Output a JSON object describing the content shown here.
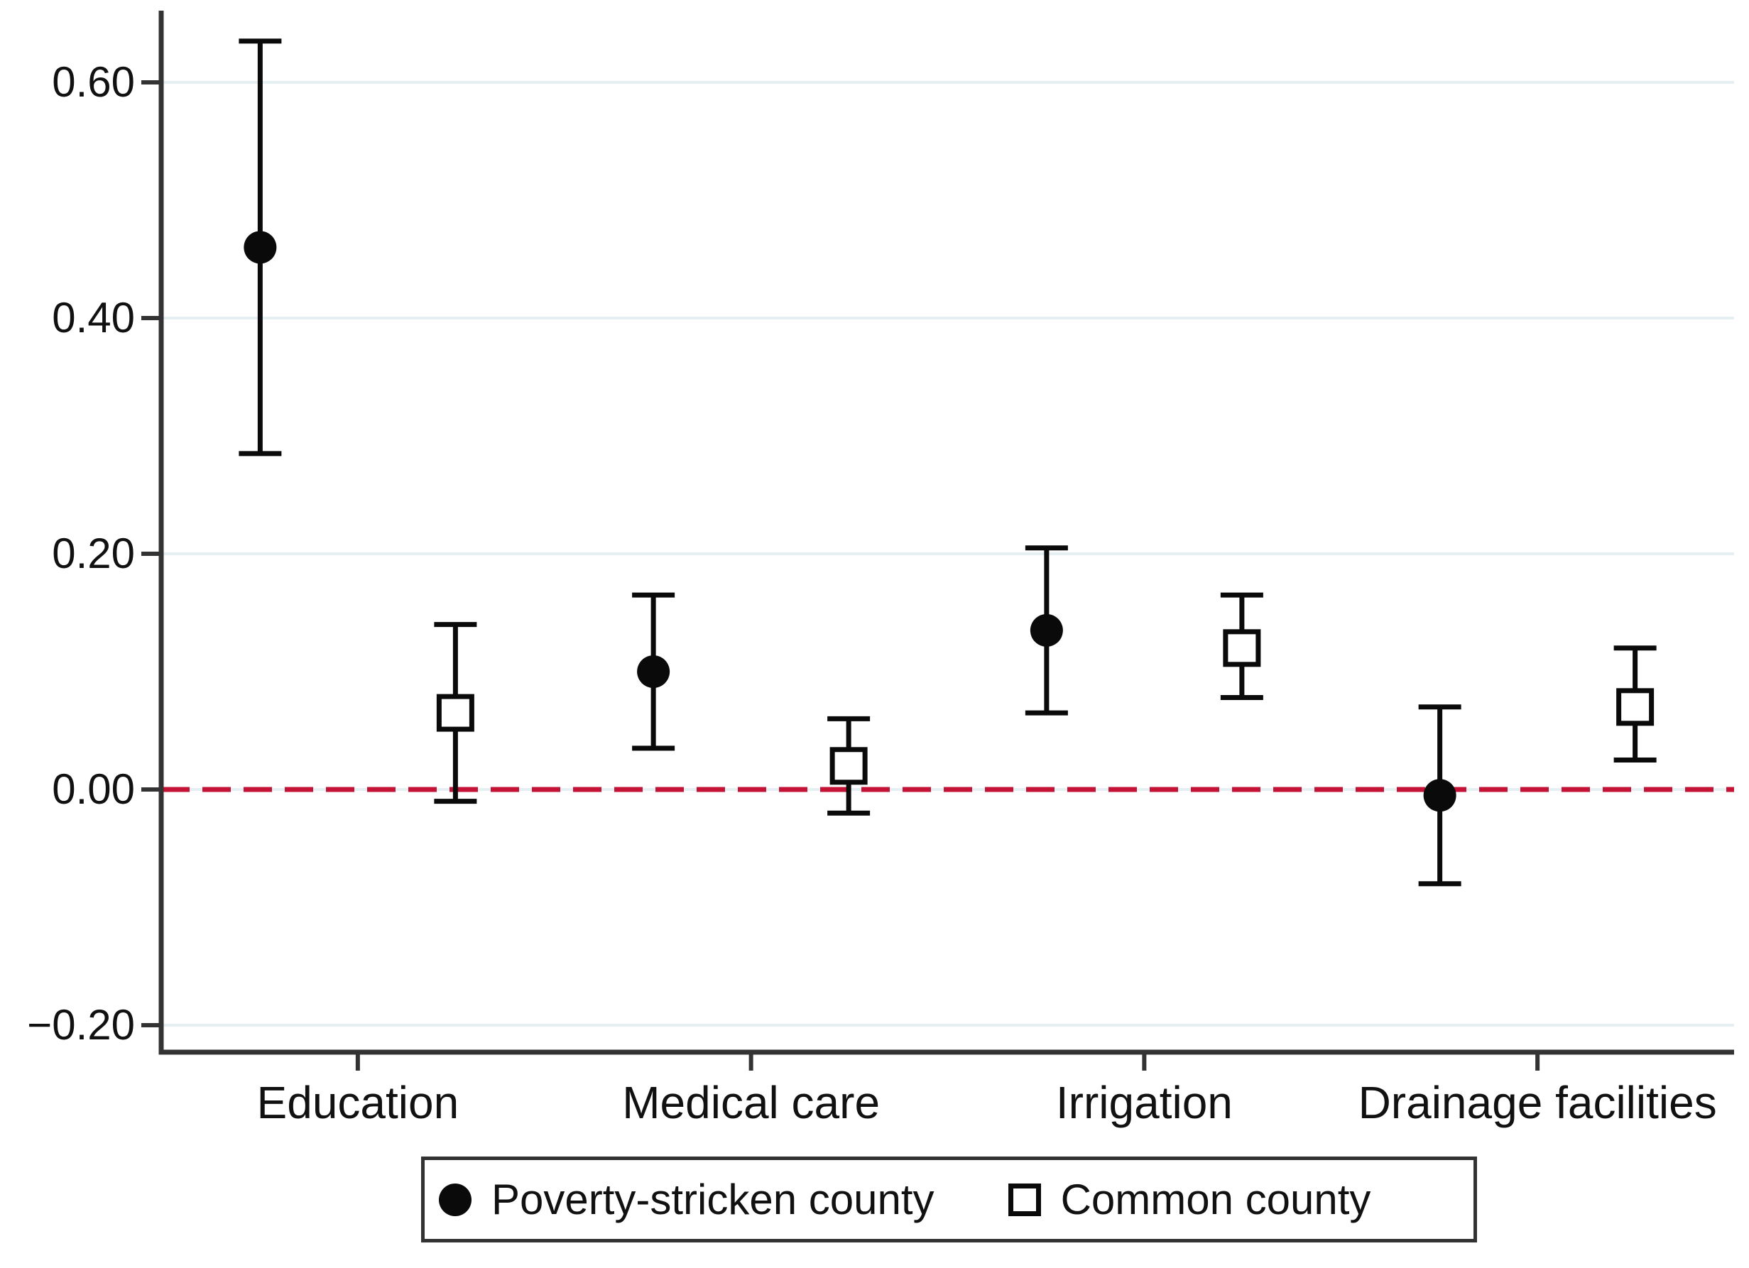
{
  "figure": {
    "background": "#ffffff"
  },
  "chart_data": {
    "type": "scatter",
    "subtype": "coefficient-plot-with-confidence-intervals",
    "title": "",
    "xlabel": "",
    "ylabel": "",
    "categories": [
      "Education",
      "Medical care",
      "Irrigation",
      "Drainage facilities"
    ],
    "series": [
      {
        "name": "Poverty-stricken county",
        "marker": "filled-circle",
        "color": "#0a0a0a",
        "values": [
          0.46,
          0.1,
          0.135,
          -0.005
        ],
        "ci_low": [
          0.285,
          0.035,
          0.065,
          -0.08
        ],
        "ci_high": [
          0.635,
          0.165,
          0.205,
          0.07
        ]
      },
      {
        "name": "Common county",
        "marker": "open-square",
        "color": "#0a0a0a",
        "values": [
          0.065,
          0.02,
          0.12,
          0.07
        ],
        "ci_low": [
          -0.01,
          -0.02,
          0.078,
          0.025
        ],
        "ci_high": [
          0.14,
          0.06,
          0.165,
          0.12
        ]
      }
    ],
    "ylim": [
      -0.223,
      0.661
    ],
    "yticks": [
      0.6,
      0.4,
      0.2,
      0.0,
      -0.2
    ],
    "ytick_labels": [
      "0.60",
      "0.40",
      "0.20",
      "0.00",
      "−0.20"
    ],
    "zero_line": {
      "value": 0.0,
      "color": "#c51237",
      "style": "dashed"
    },
    "grid": true,
    "legend_position": "bottom",
    "colors": {
      "gridline": "#e6eff1",
      "axis": "#333333",
      "marker": "#0a0a0a",
      "background": "#ffffff"
    }
  }
}
